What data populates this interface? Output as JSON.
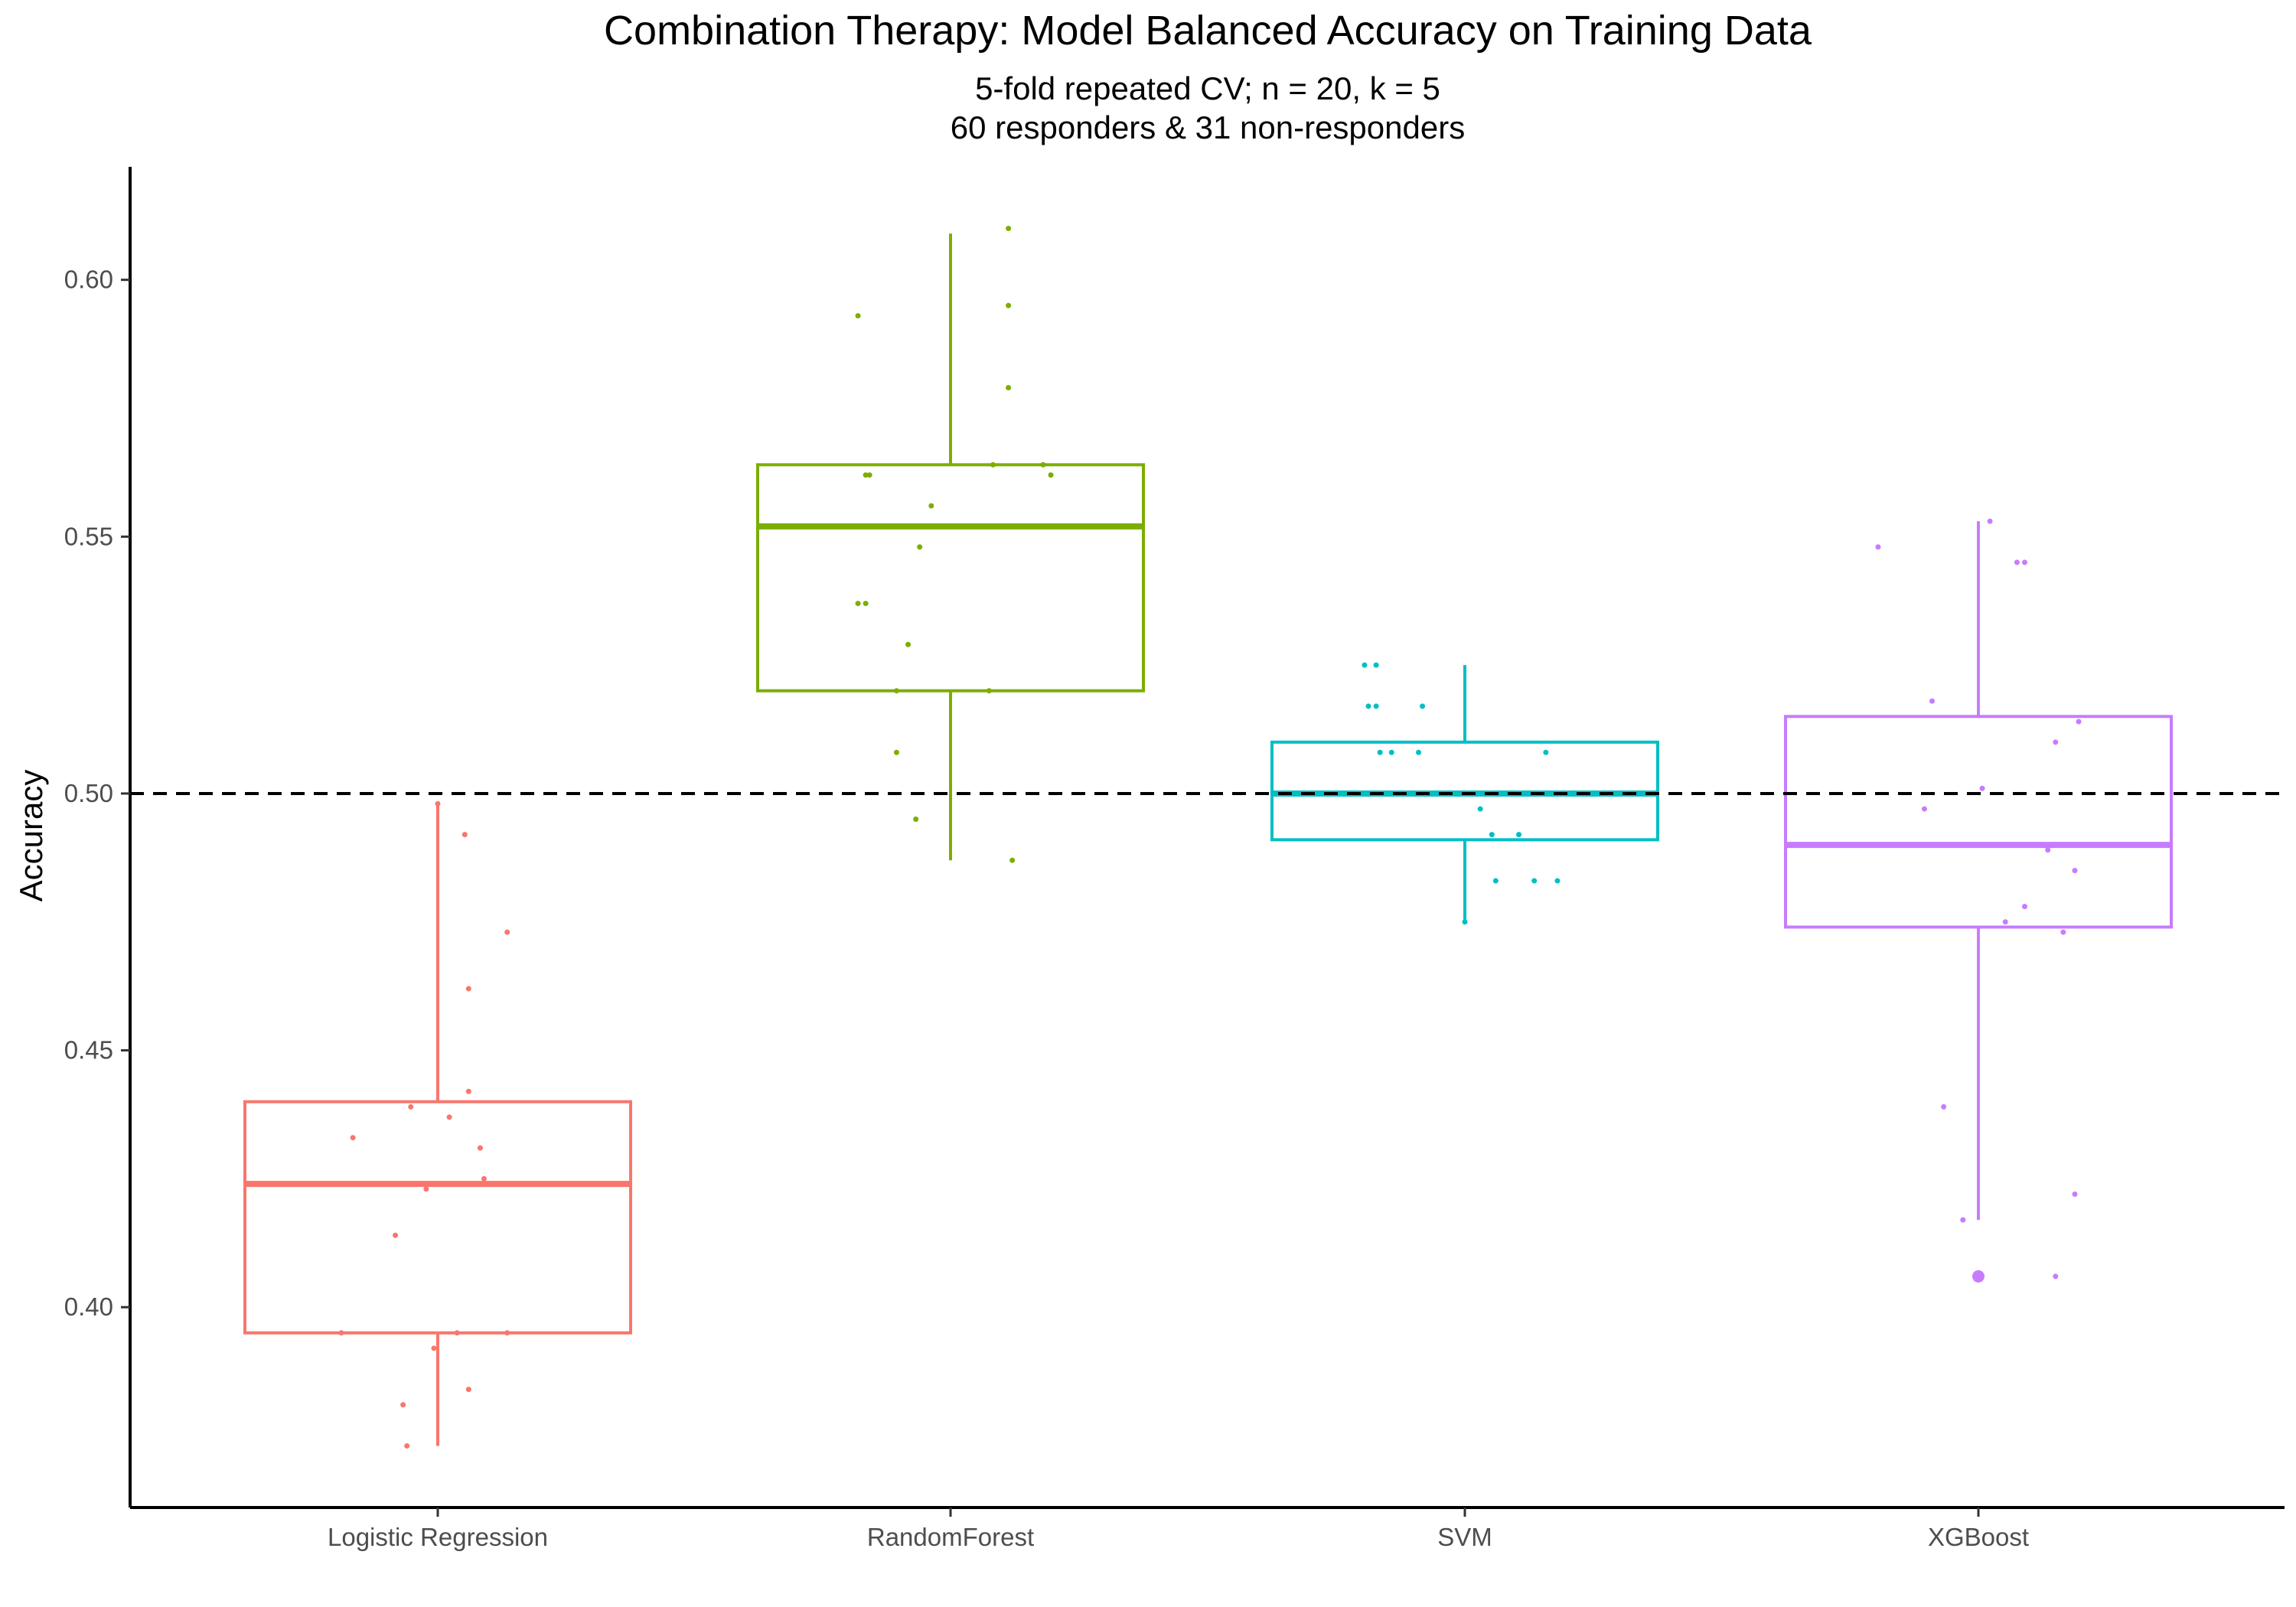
{
  "chart_data": {
    "type": "box",
    "title": "Combination Therapy: Model Balanced Accuracy on Training Data",
    "subtitle_lines": [
      "5-fold repeated CV; n = 20, k = 5",
      "60 responders & 31 non-responders"
    ],
    "xlabel": "",
    "ylabel": "Accuracy",
    "ylim": [
      0.361,
      0.622
    ],
    "yticks": [
      0.4,
      0.45,
      0.5,
      0.55,
      0.6
    ],
    "ytick_labels": [
      "0.40",
      "0.45",
      "0.50",
      "0.55",
      "0.60"
    ],
    "reference_line": {
      "y": 0.5,
      "style": "dashed",
      "color": "#000000"
    },
    "grid": false,
    "legend": "none",
    "categories": [
      "Logistic Regression",
      "RandomForest",
      "SVM",
      "XGBoost"
    ],
    "series": [
      {
        "category": "Logistic Regression",
        "color": "#F8766D",
        "whisker_low": 0.373,
        "q1": 0.395,
        "median": 0.424,
        "q3": 0.44,
        "whisker_high": 0.498,
        "outliers": [],
        "points": [
          {
            "j": 0.0,
            "y": 0.498
          },
          {
            "j": 0.07,
            "y": 0.492
          },
          {
            "j": 0.18,
            "y": 0.473
          },
          {
            "j": 0.08,
            "y": 0.462
          },
          {
            "j": 0.08,
            "y": 0.442
          },
          {
            "j": -0.07,
            "y": 0.439
          },
          {
            "j": 0.03,
            "y": 0.437
          },
          {
            "j": -0.22,
            "y": 0.433
          },
          {
            "j": 0.11,
            "y": 0.431
          },
          {
            "j": 0.12,
            "y": 0.425
          },
          {
            "j": -0.03,
            "y": 0.423
          },
          {
            "j": -0.11,
            "y": 0.414
          },
          {
            "j": -0.25,
            "y": 0.395
          },
          {
            "j": 0.05,
            "y": 0.395
          },
          {
            "j": 0.18,
            "y": 0.395
          },
          {
            "j": -0.01,
            "y": 0.392
          },
          {
            "j": 0.08,
            "y": 0.384
          },
          {
            "j": -0.09,
            "y": 0.381
          },
          {
            "j": -0.08,
            "y": 0.373
          }
        ]
      },
      {
        "category": "RandomForest",
        "color": "#7CAE00",
        "whisker_low": 0.487,
        "q1": 0.52,
        "median": 0.552,
        "q3": 0.564,
        "whisker_high": 0.609,
        "outliers": [],
        "points": [
          {
            "j": 0.15,
            "y": 0.61
          },
          {
            "j": 0.15,
            "y": 0.595
          },
          {
            "j": -0.24,
            "y": 0.593
          },
          {
            "j": 0.15,
            "y": 0.579
          },
          {
            "j": 0.11,
            "y": 0.564
          },
          {
            "j": 0.24,
            "y": 0.564
          },
          {
            "j": -0.22,
            "y": 0.562
          },
          {
            "j": -0.21,
            "y": 0.562
          },
          {
            "j": 0.26,
            "y": 0.562
          },
          {
            "j": -0.05,
            "y": 0.556
          },
          {
            "j": -0.08,
            "y": 0.548
          },
          {
            "j": -0.24,
            "y": 0.537
          },
          {
            "j": -0.22,
            "y": 0.537
          },
          {
            "j": -0.11,
            "y": 0.529
          },
          {
            "j": -0.14,
            "y": 0.52
          },
          {
            "j": 0.1,
            "y": 0.52
          },
          {
            "j": -0.14,
            "y": 0.508
          },
          {
            "j": -0.09,
            "y": 0.495
          },
          {
            "j": 0.16,
            "y": 0.487
          }
        ]
      },
      {
        "category": "SVM",
        "color": "#00BFC4",
        "whisker_low": 0.475,
        "q1": 0.491,
        "median": 0.5,
        "q3": 0.51,
        "whisker_high": 0.525,
        "outliers": [],
        "points": [
          {
            "j": -0.26,
            "y": 0.525
          },
          {
            "j": -0.23,
            "y": 0.525
          },
          {
            "j": -0.25,
            "y": 0.517
          },
          {
            "j": -0.23,
            "y": 0.517
          },
          {
            "j": -0.11,
            "y": 0.517
          },
          {
            "j": -0.22,
            "y": 0.508
          },
          {
            "j": -0.19,
            "y": 0.508
          },
          {
            "j": -0.12,
            "y": 0.508
          },
          {
            "j": 0.21,
            "y": 0.508
          },
          {
            "j": -0.29,
            "y": 0.5
          },
          {
            "j": -0.18,
            "y": 0.5
          },
          {
            "j": -0.08,
            "y": 0.5
          },
          {
            "j": 0.05,
            "y": 0.5
          },
          {
            "j": 0.16,
            "y": 0.5
          },
          {
            "j": 0.28,
            "y": 0.5
          },
          {
            "j": 0.04,
            "y": 0.497
          },
          {
            "j": 0.07,
            "y": 0.492
          },
          {
            "j": 0.14,
            "y": 0.492
          },
          {
            "j": 0.08,
            "y": 0.483
          },
          {
            "j": 0.18,
            "y": 0.483
          },
          {
            "j": 0.24,
            "y": 0.483
          },
          {
            "j": 0.0,
            "y": 0.475
          }
        ]
      },
      {
        "category": "XGBoost",
        "color": "#C77CFF",
        "whisker_low": 0.417,
        "q1": 0.474,
        "median": 0.49,
        "q3": 0.515,
        "whisker_high": 0.553,
        "outliers": [
          0.406
        ],
        "points": [
          {
            "j": 0.03,
            "y": 0.553
          },
          {
            "j": -0.26,
            "y": 0.548
          },
          {
            "j": 0.1,
            "y": 0.545
          },
          {
            "j": 0.12,
            "y": 0.545
          },
          {
            "j": -0.12,
            "y": 0.518
          },
          {
            "j": 0.26,
            "y": 0.514
          },
          {
            "j": 0.2,
            "y": 0.51
          },
          {
            "j": 0.01,
            "y": 0.501
          },
          {
            "j": -0.14,
            "y": 0.497
          },
          {
            "j": -0.21,
            "y": 0.49
          },
          {
            "j": -0.15,
            "y": 0.49
          },
          {
            "j": 0.18,
            "y": 0.489
          },
          {
            "j": 0.25,
            "y": 0.485
          },
          {
            "j": 0.12,
            "y": 0.478
          },
          {
            "j": 0.07,
            "y": 0.475
          },
          {
            "j": 0.22,
            "y": 0.473
          },
          {
            "j": -0.09,
            "y": 0.439
          },
          {
            "j": 0.25,
            "y": 0.422
          },
          {
            "j": -0.04,
            "y": 0.417
          },
          {
            "j": 0.2,
            "y": 0.406
          }
        ]
      }
    ]
  }
}
